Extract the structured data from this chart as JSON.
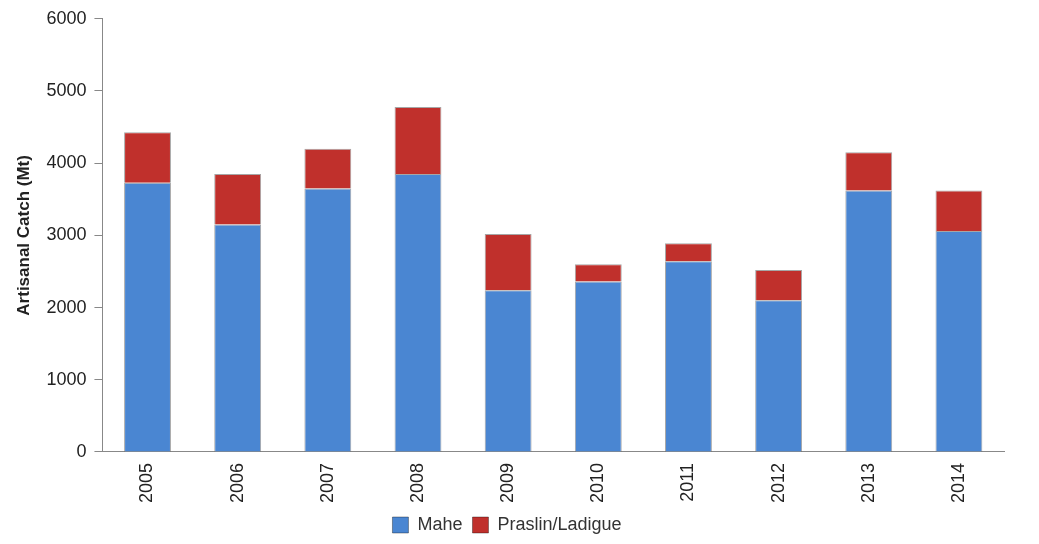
{
  "chart_data": {
    "type": "bar",
    "ylabel": "Artisanal Catch (Mt)",
    "stacked": true,
    "categories": [
      "2005",
      "2006",
      "2007",
      "2008",
      "2009",
      "2010",
      "2011",
      "2012",
      "2013",
      "2014"
    ],
    "series": [
      {
        "name": "Mahe",
        "color": "#4a86d2",
        "values": [
          3730,
          3150,
          3650,
          3850,
          2240,
          2360,
          2640,
          2100,
          3620,
          3060
        ]
      },
      {
        "name": "Praslin/Ladigue",
        "color": "#c0302c",
        "values": [
          700,
          700,
          550,
          930,
          780,
          240,
          250,
          420,
          530,
          560
        ]
      }
    ],
    "ylim": [
      0,
      6000
    ],
    "yticks": [
      0,
      1000,
      2000,
      3000,
      4000,
      5000,
      6000
    ],
    "grid": false,
    "legend": "bottom"
  }
}
